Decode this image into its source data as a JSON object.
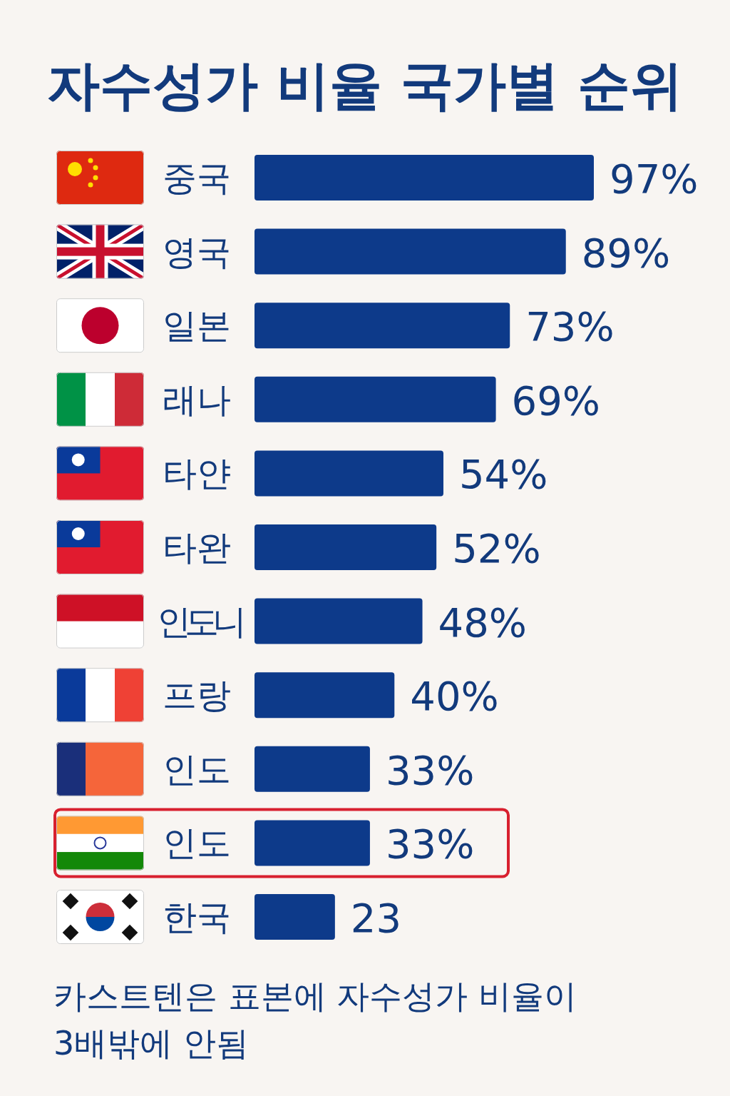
{
  "chart_data": {
    "type": "bar",
    "orientation": "horizontal",
    "title": "자수성가 비율 국가별 순위",
    "categories": [
      "중국",
      "영국",
      "일본",
      "래나",
      "타얀",
      "타완",
      "인도니",
      "프랑",
      "인도",
      "인도",
      "한국"
    ],
    "values": [
      97,
      89,
      73,
      69,
      54,
      52,
      48,
      40,
      33,
      33,
      23
    ],
    "value_labels": [
      "97%",
      "89%",
      "73%",
      "69%",
      "54%",
      "52%",
      "48%",
      "40%",
      "33%",
      "33%",
      "23"
    ],
    "color": "#0d3a8a",
    "annotations": [
      "카스트텐은 표본에 자수성가 비율이 3배밖에 안됨"
    ]
  }
}
